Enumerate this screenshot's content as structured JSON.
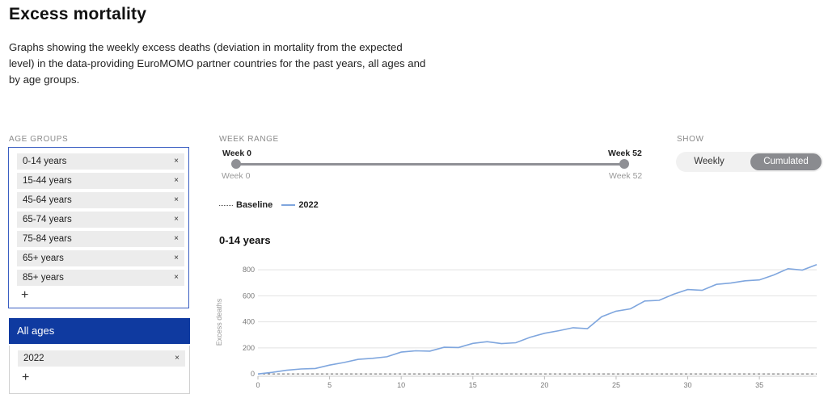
{
  "page": {
    "title": "Excess mortality",
    "description": "Graphs showing the weekly excess deaths (deviation in mortality from the expected level) in the data-providing EuroMOMO partner countries for the past years, all ages and by age groups."
  },
  "age_groups": {
    "label": "AGE GROUPS",
    "tags": [
      "0-14 years",
      "15-44 years",
      "45-64 years",
      "65-74 years",
      "75-84 years",
      "65+ years",
      "85+ years"
    ],
    "remove_glyph": "×",
    "add_glyph": "+"
  },
  "all_ages": {
    "label": "All ages",
    "tags": [
      "2022"
    ]
  },
  "week_range": {
    "label": "WEEK RANGE",
    "start_label": "Week 0",
    "end_label": "Week 52",
    "start_value": "Week 0",
    "end_value": "Week 52"
  },
  "show": {
    "label": "SHOW",
    "options": [
      "Weekly",
      "Cumulated"
    ],
    "selected": "Cumulated"
  },
  "legend": {
    "baseline": "Baseline",
    "series": "2022"
  },
  "colors": {
    "accent": "#0f3aa0",
    "series": "#7fa6de",
    "box_border": "#3a5ec2"
  },
  "chart_data": {
    "type": "line",
    "title": "0-14 years",
    "ylabel": "Excess deaths",
    "xlabel": "",
    "xlim": [
      0,
      39
    ],
    "ylim": [
      -30,
      900
    ],
    "xticks": [
      0,
      5,
      10,
      15,
      20,
      25,
      30,
      35
    ],
    "yticks": [
      0,
      200,
      400,
      600,
      800
    ],
    "grid": true,
    "baseline": 0,
    "series": [
      {
        "name": "2022",
        "x": [
          0,
          1,
          2,
          3,
          4,
          5,
          6,
          7,
          8,
          9,
          10,
          11,
          12,
          13,
          14,
          15,
          16,
          17,
          18,
          19,
          20,
          21,
          22,
          23,
          24,
          25,
          26,
          27,
          28,
          29,
          30,
          31,
          32,
          33,
          34,
          35,
          36,
          37,
          38,
          39
        ],
        "values": [
          0,
          12,
          28,
          38,
          42,
          68,
          88,
          112,
          120,
          132,
          168,
          178,
          175,
          205,
          203,
          235,
          248,
          233,
          240,
          282,
          312,
          332,
          355,
          348,
          440,
          482,
          500,
          560,
          565,
          612,
          648,
          642,
          688,
          698,
          715,
          722,
          760,
          808,
          798,
          840
        ]
      }
    ]
  }
}
